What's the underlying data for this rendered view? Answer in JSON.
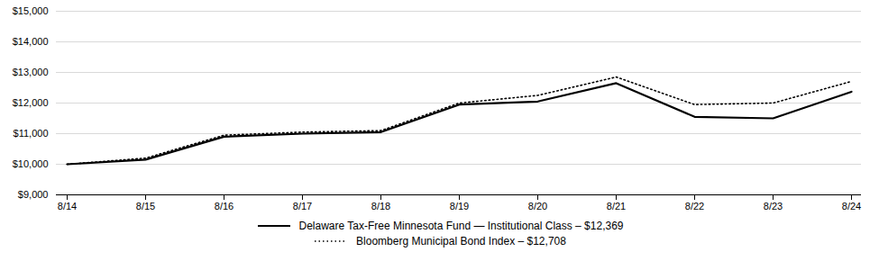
{
  "chart_data": {
    "type": "line",
    "categories": [
      "8/14",
      "8/15",
      "8/16",
      "8/17",
      "8/18",
      "8/19",
      "8/20",
      "8/21",
      "8/22",
      "8/23",
      "8/24"
    ],
    "series": [
      {
        "name": "Delaware Tax-Free Minnesota Fund — Institutional Class – $12,369",
        "color": "#000000",
        "line_style": "solid",
        "values": [
          10000,
          10150,
          10900,
          11000,
          11050,
          11950,
          12050,
          12650,
          11550,
          11500,
          12369
        ]
      },
      {
        "name": "Bloomberg Municipal Bond Index – $12,708",
        "color": "#000000",
        "line_style": "dotted",
        "values": [
          10000,
          10200,
          10950,
          11050,
          11100,
          12000,
          12250,
          12850,
          11950,
          12000,
          12708
        ]
      }
    ],
    "ylim": [
      9000,
      15000
    ],
    "yticks": [
      {
        "value": 9000,
        "label": "$9,000"
      },
      {
        "value": 10000,
        "label": "$10,000"
      },
      {
        "value": 11000,
        "label": "$11,000"
      },
      {
        "value": 12000,
        "label": "$12,000"
      },
      {
        "value": 13000,
        "label": "$13,000"
      },
      {
        "value": 14000,
        "label": "$14,000"
      },
      {
        "value": 15000,
        "label": "$15,000"
      }
    ],
    "grid": true,
    "legend": "bottom"
  }
}
